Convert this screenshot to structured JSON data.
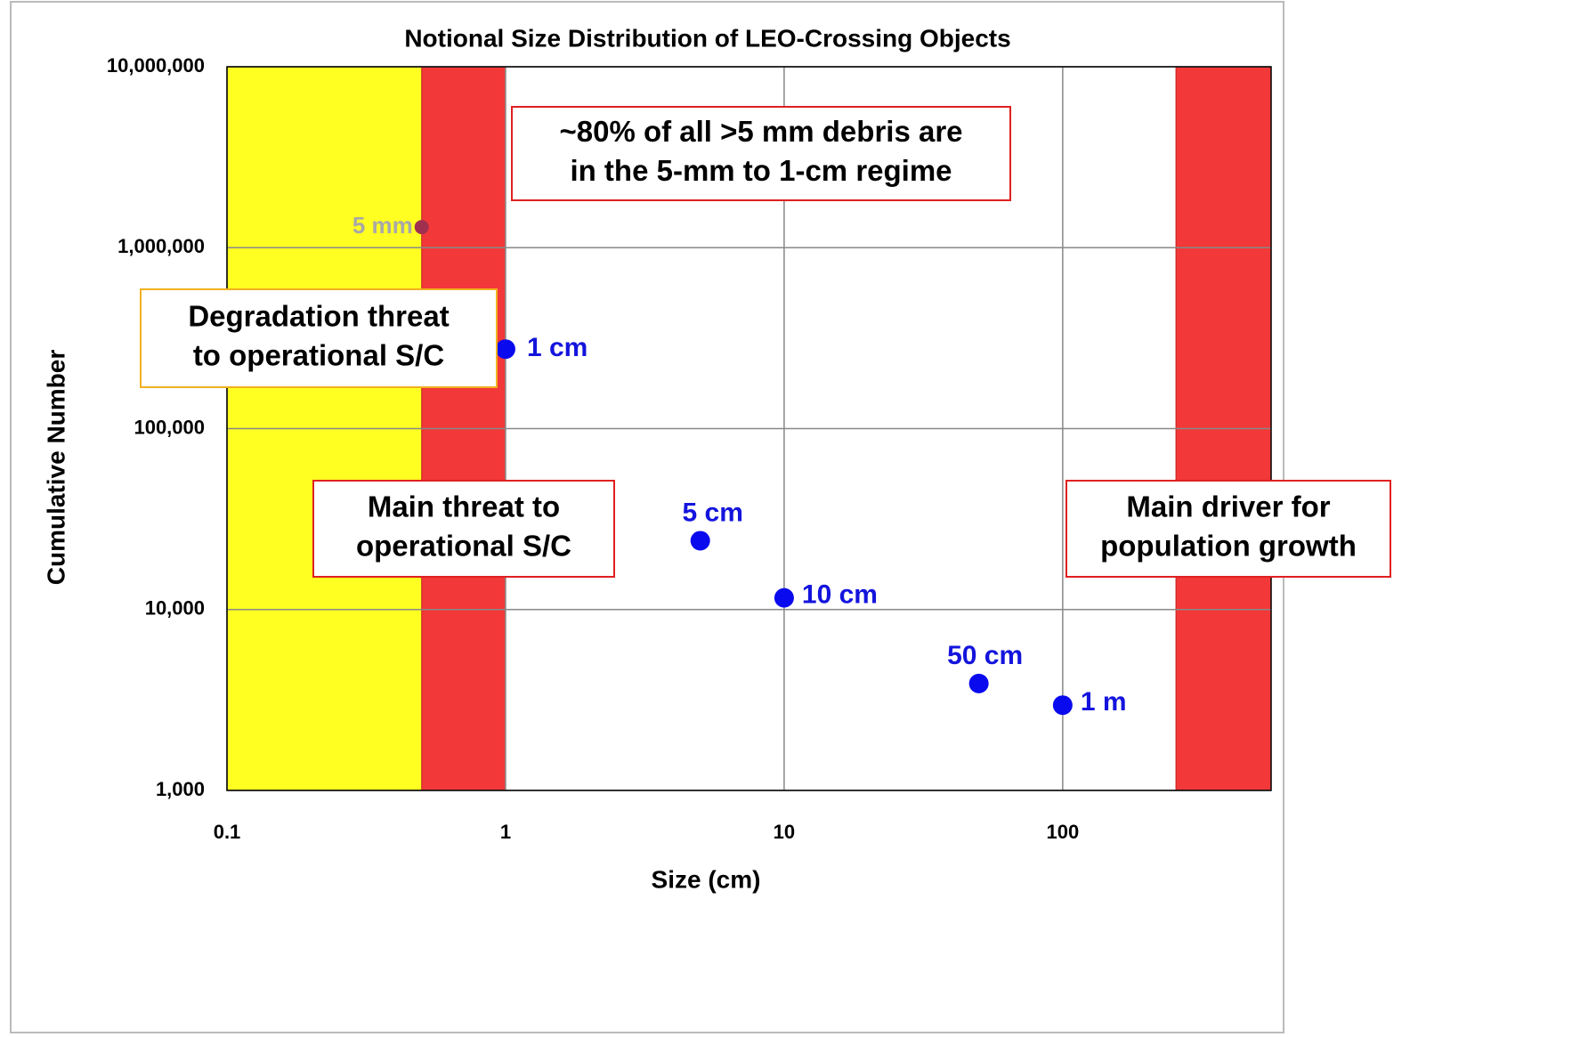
{
  "chart_data": {
    "type": "scatter",
    "title": "Notional Size Distribution of LEO-Crossing Objects",
    "x_label": "Size (cm)",
    "y_label": "Cumulative Number",
    "log_x": true,
    "log_y": true,
    "grid": true,
    "xlim": [
      0.1,
      560
    ],
    "ylim": [
      1000,
      10000000
    ],
    "xticks": [
      0.1,
      1,
      10,
      100
    ],
    "yticks": [
      {
        "value": 1000,
        "label": "1,000"
      },
      {
        "value": 10000,
        "label": "10,000"
      },
      {
        "value": 100000,
        "label": "100,000"
      },
      {
        "value": 1000000,
        "label": "1,000,000"
      },
      {
        "value": 10000000,
        "label": "10,000,000"
      }
    ],
    "regions": [
      {
        "from": 0.1,
        "to": 0.5,
        "color": "#ffff22"
      },
      {
        "from": 0.5,
        "to": 1,
        "color": "#f23838"
      },
      {
        "from": 255,
        "to": 560,
        "color": "#f23838"
      }
    ],
    "x": [
      0.5,
      1,
      5,
      10,
      50,
      100
    ],
    "values": [
      1300000,
      275000,
      24000,
      11600,
      3900,
      2960
    ],
    "point_labels": [
      "5 mm",
      "1 cm",
      "5 cm",
      "10 cm",
      "50 cm",
      "1 m"
    ],
    "colors": [
      "#a03050",
      "#0a0aee",
      "#0a0aee",
      "#0a0aee",
      "#0a0aee",
      "#0a0aee"
    ],
    "label_colors": [
      "#a8a8a8",
      "#1414dd",
      "#1414dd",
      "#1414dd",
      "#1414dd",
      "#1414dd"
    ],
    "annotations": [
      {
        "lines": [
          "~80% of all >5 mm debris are",
          "in the 5-mm to 1-cm regime"
        ],
        "border": "#e02020"
      },
      {
        "lines": [
          "Degradation threat",
          "to operational S/C"
        ],
        "border": "#f0b020"
      },
      {
        "lines": [
          "Main threat to",
          "operational S/C"
        ],
        "border": "#e02020"
      },
      {
        "lines": [
          "Main driver for",
          "population growth"
        ],
        "border": "#e02020"
      }
    ]
  }
}
